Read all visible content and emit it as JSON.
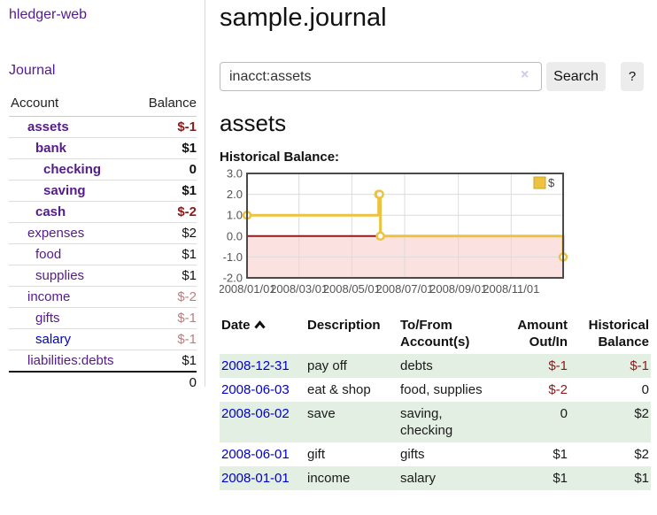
{
  "app": {
    "brand": "hledger-web",
    "nav_journal": "Journal"
  },
  "sidebar": {
    "header": {
      "account": "Account",
      "balance": "Balance"
    },
    "accounts": [
      {
        "name": "assets",
        "indent": 1,
        "bold": true,
        "balance": "$-1",
        "tone": "neg"
      },
      {
        "name": "bank",
        "indent": 2,
        "bold": true,
        "balance": "$1",
        "tone": "pos"
      },
      {
        "name": "checking",
        "indent": 3,
        "bold": true,
        "balance": "0",
        "tone": "pos"
      },
      {
        "name": "saving",
        "indent": 3,
        "bold": true,
        "balance": "$1",
        "tone": "pos"
      },
      {
        "name": "cash",
        "indent": 2,
        "bold": true,
        "balance": "$-2",
        "tone": "neg"
      },
      {
        "name": "expenses",
        "indent": 1,
        "bold": false,
        "balance": "$2",
        "tone": "pos"
      },
      {
        "name": "food",
        "indent": 2,
        "bold": false,
        "balance": "$1",
        "tone": "pos"
      },
      {
        "name": "supplies",
        "indent": 2,
        "bold": false,
        "balance": "$1",
        "tone": "pos"
      },
      {
        "name": "income",
        "indent": 1,
        "bold": false,
        "balance": "$-2",
        "tone": "negsoft"
      },
      {
        "name": "gifts",
        "indent": 2,
        "bold": false,
        "balance": "$-1",
        "tone": "negsoft"
      },
      {
        "name": "salary",
        "indent": 2,
        "bold": false,
        "balance": "$-1",
        "tone": "negsoft",
        "link": "blue"
      },
      {
        "name": "liabilities:debts",
        "indent": 1,
        "bold": false,
        "balance": "$1",
        "tone": "pos"
      }
    ],
    "total": "0"
  },
  "header": {
    "title": "sample.journal"
  },
  "search": {
    "value": "inacct:assets",
    "clear_icon": "×",
    "button_label": "Search",
    "help_label": "?"
  },
  "register": {
    "heading": "assets",
    "chart_label": "Historical Balance:",
    "table": {
      "headers": {
        "date": "Date",
        "description": "Description",
        "accounts": "To/From Account(s)",
        "amount": "Amount Out/In",
        "balance": "Historical Balance"
      },
      "rows": [
        {
          "date": "2008-12-31",
          "description": "pay off",
          "accounts": "debts",
          "amount": "$-1",
          "balance": "$-1"
        },
        {
          "date": "2008-06-03",
          "description": "eat & shop",
          "accounts": "food, supplies",
          "amount": "$-2",
          "balance": "0"
        },
        {
          "date": "2008-06-02",
          "description": "save",
          "accounts": "saving, checking",
          "amount": "0",
          "balance": "$2"
        },
        {
          "date": "2008-06-01",
          "description": "gift",
          "accounts": "gifts",
          "amount": "$1",
          "balance": "$2"
        },
        {
          "date": "2008-01-01",
          "description": "income",
          "accounts": "salary",
          "amount": "$1",
          "balance": "$1"
        }
      ]
    }
  },
  "chart_data": {
    "type": "line",
    "title": "Historical Balance:",
    "steps": true,
    "series": [
      {
        "name": "$",
        "color": "#EDC240",
        "points": [
          [
            "2008-01-01",
            1
          ],
          [
            "2008-06-01",
            2
          ],
          [
            "2008-06-02",
            2
          ],
          [
            "2008-06-03",
            0
          ],
          [
            "2008-12-31",
            -1
          ]
        ]
      }
    ],
    "x_domain": [
      "2008-01-01",
      "2008-12-31"
    ],
    "x_ticks": [
      {
        "date": "2008-01-01",
        "label": "2008/01/01"
      },
      {
        "date": "2008-03-01",
        "label": "2008/03/01"
      },
      {
        "date": "2008-05-01",
        "label": "2008/05/01"
      },
      {
        "date": "2008-07-01",
        "label": "2008/07/01"
      },
      {
        "date": "2008-09-01",
        "label": "2008/09/01"
      },
      {
        "date": "2008-11-01",
        "label": "2008/11/01"
      }
    ],
    "y_ticks": [
      3.0,
      2.0,
      1.0,
      0.0,
      -1.0,
      -2.0
    ],
    "ylim": [
      -2.0,
      3.0
    ],
    "grid": true,
    "colors": {
      "negative_region": "#FCE1E1",
      "zero_line": "#8F1D1D",
      "grid_line": "#DCDCDC",
      "border": "#4A4A4A",
      "tick_text": "#545454"
    },
    "legend": {
      "label": "$",
      "position": "top-right"
    }
  }
}
